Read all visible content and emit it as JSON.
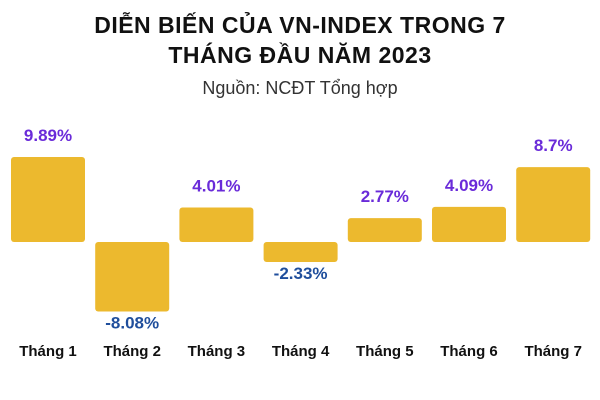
{
  "header": {
    "title_line1": "DIỄN BIẾN CỦA VN-INDEX TRONG 7",
    "title_line2": "THÁNG ĐẦU NĂM 2023",
    "subtitle": "Nguồn: NCĐT Tổng hợp"
  },
  "colors": {
    "bar": "#ECB92E",
    "positive_label": "#6A2BD9",
    "negative_label": "#1F4E9C"
  },
  "chart_data": {
    "type": "bar",
    "categories": [
      "Tháng 1",
      "Tháng 2",
      "Tháng 3",
      "Tháng 4",
      "Tháng 5",
      "Tháng 6",
      "Tháng 7"
    ],
    "values": [
      9.89,
      -8.08,
      4.01,
      -2.33,
      2.77,
      4.09,
      8.7
    ],
    "value_labels": [
      "9.89%",
      "-8.08%",
      "4.01%",
      "-2.33%",
      "2.77%",
      "4.09%",
      "8.7%"
    ],
    "title": "DIỄN BIẾN CỦA VN-INDEX TRONG 7 THÁNG ĐẦU NĂM 2023",
    "subtitle": "Nguồn: NCĐT Tổng hợp",
    "grid": false,
    "legend": "none"
  }
}
